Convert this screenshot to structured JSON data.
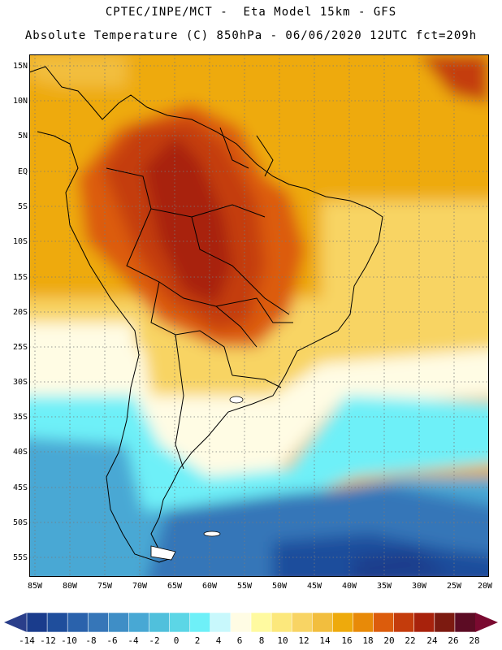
{
  "header": {
    "line1": "CPTEC/INPE/MCT -  Eta Model 15km - GFS",
    "line2": "Absolute Temperature (C) 850hPa - 06/06/2020 12UTC fct=209h"
  },
  "map": {
    "lat_labels": [
      "15N",
      "10N",
      "5N",
      "EQ",
      "5S",
      "10S",
      "15S",
      "20S",
      "25S",
      "30S",
      "35S",
      "40S",
      "45S",
      "50S",
      "55S"
    ],
    "lon_labels": [
      "85W",
      "80W",
      "75W",
      "70W",
      "65W",
      "60W",
      "55W",
      "50W",
      "45W",
      "40W",
      "35W",
      "30W",
      "25W",
      "20W"
    ]
  },
  "colorbar": {
    "labels": [
      "-14",
      "-12",
      "-10",
      "-8",
      "-6",
      "-4",
      "-2",
      "0",
      "2",
      "4",
      "6",
      "8",
      "10",
      "12",
      "14",
      "16",
      "18",
      "20",
      "22",
      "24",
      "26",
      "28"
    ],
    "colors": [
      "#1a3c8c",
      "#1f4e9c",
      "#2a62ac",
      "#3676b8",
      "#3f8ec6",
      "#48a8d4",
      "#50c0dc",
      "#5cd6e6",
      "#6ef0f8",
      "#c8f8fc",
      "#fffce4",
      "#fffaa0",
      "#fce87c",
      "#f8d464",
      "#f2be3e",
      "#eeaa0c",
      "#e88a08",
      "#dc5c0c",
      "#c43c0c",
      "#a8220c",
      "#7c1a10",
      "#5c0c24"
    ]
  }
}
